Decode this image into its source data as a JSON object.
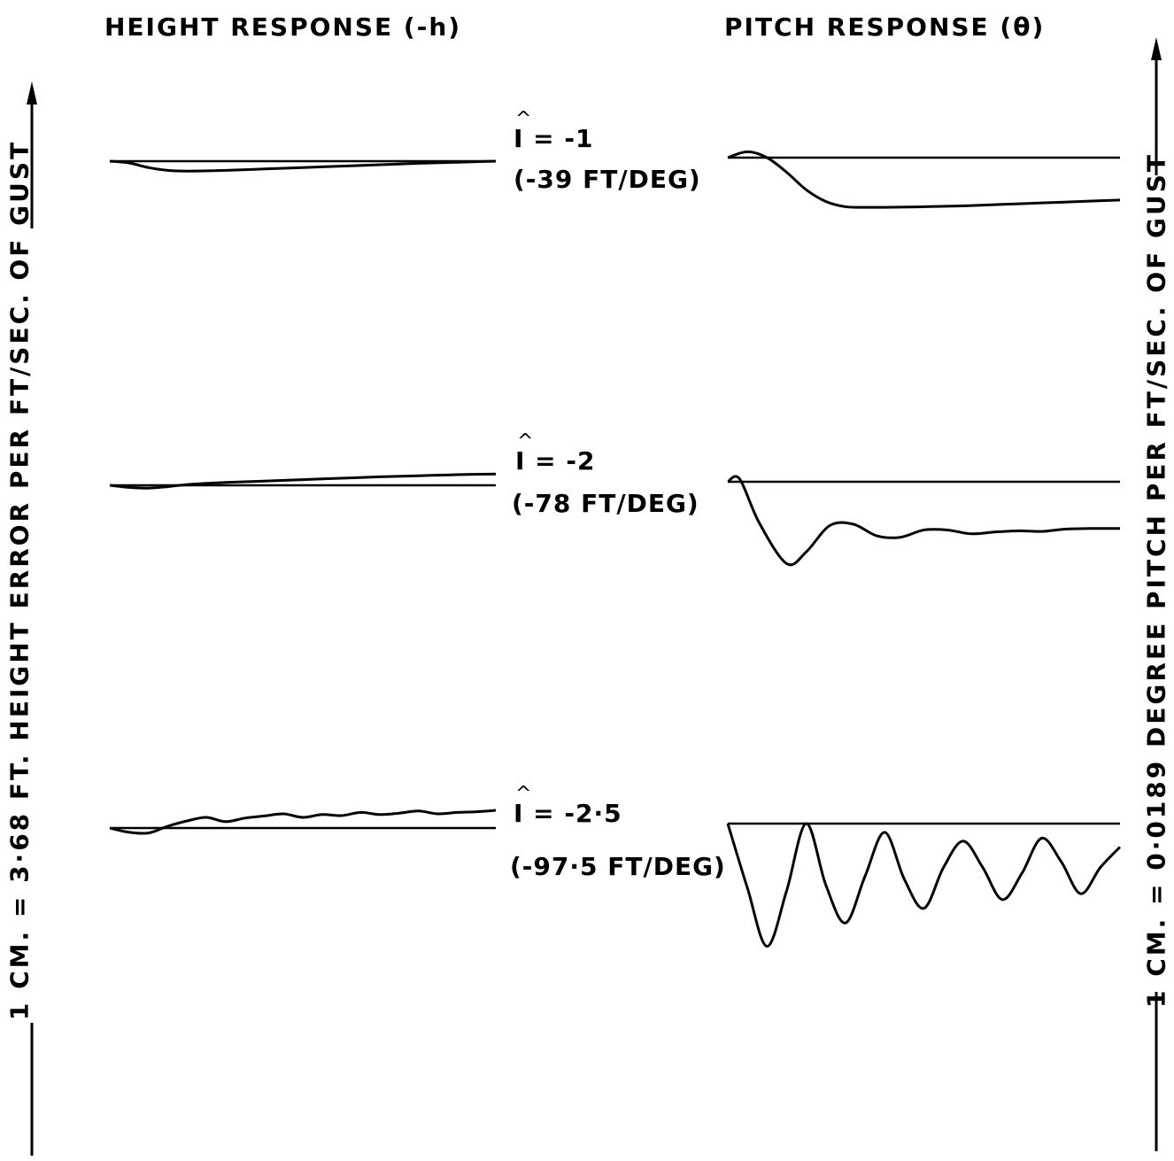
{
  "headings": {
    "left": "HEIGHT RESPONSE (-h)",
    "right": "PITCH RESPONSE (θ)"
  },
  "axis_labels": {
    "left": "1 CM. = 3·68 FT. HEIGHT ERROR PER FT/SEC. OF GUST",
    "right": "1 CM. = 0·0189 DEGREE PITCH PER FT/SEC. OF GUST"
  },
  "cases": [
    {
      "index_label": "I = -1",
      "gain_label": "(-39 FT/DEG)"
    },
    {
      "index_label": "I = -2",
      "gain_label": "(-78 FT/DEG)"
    },
    {
      "index_label": "I = -2·5",
      "gain_label": "(-97·5 FT/DEG)"
    }
  ],
  "colors": {
    "ink": "#000000",
    "background": "#ffffff"
  },
  "chart_data": [
    {
      "type": "line",
      "title": "HEIGHT RESPONSE (-h)",
      "ylabel": "1 CM. = 3·68 FT. HEIGHT ERROR PER FT/SEC. OF GUST",
      "grid": false,
      "legend": "none",
      "note": "three stacked traces, each with a horizontal zero reference line; y in cm of trace deflection (positive up)",
      "series": [
        {
          "name": "I = -1",
          "x": [
            0,
            0.5,
            1,
            1.5,
            2,
            3,
            4,
            5,
            6,
            7,
            8,
            9,
            10
          ],
          "y": [
            0,
            -0.05,
            -0.18,
            -0.26,
            -0.28,
            -0.26,
            -0.22,
            -0.18,
            -0.14,
            -0.1,
            -0.06,
            -0.03,
            0
          ]
        },
        {
          "name": "I = -2",
          "x": [
            0,
            0.5,
            1,
            1.5,
            2,
            3,
            4,
            5,
            6,
            7,
            8,
            9,
            10
          ],
          "y": [
            0,
            -0.06,
            -0.08,
            -0.04,
            0.02,
            0.08,
            0.12,
            0.16,
            0.2,
            0.24,
            0.27,
            0.3,
            0.32
          ]
        },
        {
          "name": "I = -2·5",
          "x": [
            0,
            0.5,
            1,
            1.5,
            2,
            2.5,
            3,
            3.5,
            4,
            4.5,
            5,
            5.5,
            6,
            6.5,
            7,
            7.5,
            8,
            8.5,
            9,
            9.5,
            10
          ],
          "y": [
            0,
            -0.12,
            -0.14,
            0.05,
            0.2,
            0.3,
            0.18,
            0.28,
            0.34,
            0.4,
            0.3,
            0.38,
            0.35,
            0.44,
            0.38,
            0.42,
            0.48,
            0.4,
            0.44,
            0.46,
            0.5
          ]
        }
      ]
    },
    {
      "type": "line",
      "title": "PITCH RESPONSE (θ)",
      "ylabel": "1 CM. = 0·0189 DEGREE PITCH PER FT/SEC. OF GUST",
      "grid": false,
      "legend": "none",
      "note": "three stacked traces, each with a horizontal zero reference line; y in cm of trace deflection (positive up)",
      "series": [
        {
          "name": "I = -1",
          "x": [
            0,
            0.5,
            1,
            1.5,
            2,
            2.5,
            3,
            3.5,
            4,
            5,
            6,
            7,
            8,
            9,
            10
          ],
          "y": [
            0,
            0.2,
            0,
            -0.5,
            -1.1,
            -1.5,
            -1.68,
            -1.7,
            -1.7,
            -1.68,
            -1.65,
            -1.6,
            -1.55,
            -1.5,
            -1.45
          ]
        },
        {
          "name": "I = -2",
          "x": [
            0,
            0.3,
            0.8,
            1.5,
            2,
            2.6,
            3.2,
            3.8,
            4.4,
            5,
            5.6,
            6.2,
            6.8,
            7.4,
            8,
            8.6,
            9.2,
            10
          ],
          "y": [
            0,
            0.1,
            -1.4,
            -2.8,
            -2.4,
            -1.5,
            -1.45,
            -1.85,
            -1.9,
            -1.65,
            -1.65,
            -1.78,
            -1.72,
            -1.68,
            -1.7,
            -1.62,
            -1.6,
            -1.6
          ]
        },
        {
          "name": "I = -2·5",
          "x": [
            0,
            0.5,
            1,
            1.5,
            2,
            2.5,
            3,
            3.5,
            4,
            4.5,
            5,
            5.5,
            6,
            6.5,
            7,
            7.5,
            8,
            8.5,
            9,
            9.5,
            10
          ],
          "y": [
            0,
            -2.2,
            -4.2,
            -2.3,
            0,
            -2.1,
            -3.4,
            -1.8,
            -0.3,
            -1.9,
            -2.9,
            -1.5,
            -0.6,
            -1.5,
            -2.6,
            -1.7,
            -0.5,
            -1.3,
            -2.4,
            -1.5,
            -0.8
          ]
        }
      ]
    }
  ]
}
